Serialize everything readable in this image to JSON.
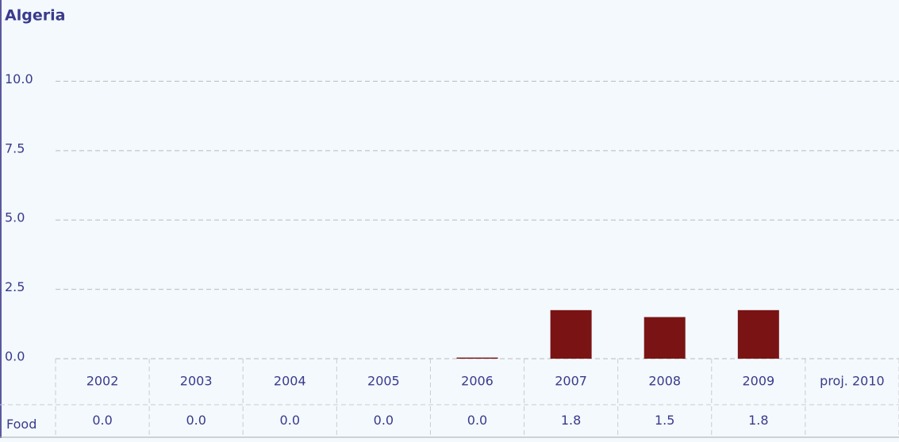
{
  "chart_data": {
    "type": "bar",
    "title": "Algeria",
    "categories": [
      "2002",
      "2003",
      "2004",
      "2005",
      "2006",
      "2007",
      "2008",
      "2009",
      "proj. 2010"
    ],
    "series": [
      {
        "name": "Food",
        "color": "#7a1414",
        "values": [
          0,
          0,
          0,
          0,
          0.04,
          1.75,
          1.5,
          1.75,
          null
        ],
        "value_labels": [
          "0.0",
          "0.0",
          "0.0",
          "0.0",
          "0.0",
          "1.8",
          "1.5",
          "1.8",
          null
        ]
      }
    ],
    "ylim": [
      0,
      11.5
    ],
    "yticks": [
      {
        "value": 0,
        "label": "0.0"
      },
      {
        "value": 2.5,
        "label": "2.5"
      },
      {
        "value": 5,
        "label": "5.0"
      },
      {
        "value": 7.5,
        "label": "7.5"
      },
      {
        "value": 10,
        "label": "10.0"
      }
    ],
    "grid": true
  }
}
